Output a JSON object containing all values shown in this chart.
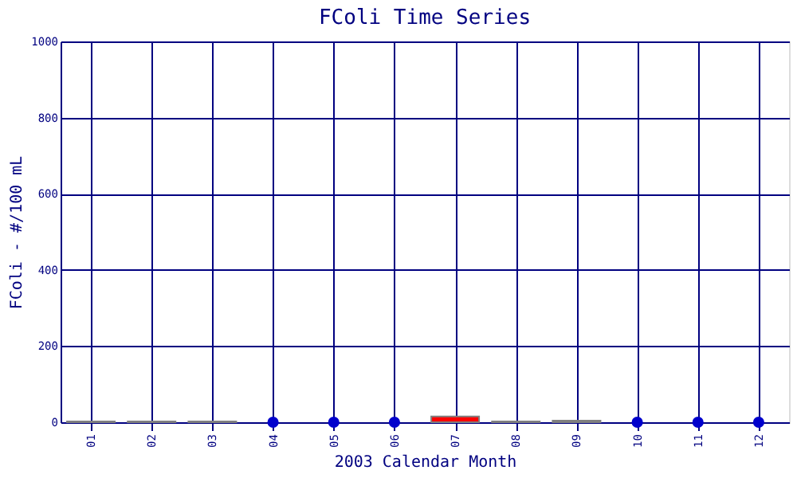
{
  "chart_data": {
    "type": "bar",
    "title": "FColi Time Series",
    "xlabel": "2003 Calendar Month",
    "ylabel": "FColi - #/100 mL",
    "categories": [
      "01",
      "02",
      "03",
      "04",
      "05",
      "06",
      "07",
      "08",
      "09",
      "10",
      "11",
      "12"
    ],
    "series": [
      {
        "type": "bar",
        "color": "#808080",
        "colors": [
          "#808080",
          "#808080",
          "#808080",
          null,
          null,
          null,
          "#ff0000",
          "#808080",
          "#808080",
          null,
          null,
          null
        ],
        "values": [
          2,
          2,
          2,
          null,
          null,
          null,
          15,
          2,
          4,
          null,
          null,
          null
        ]
      },
      {
        "type": "scatter",
        "color": "#0000cc",
        "x": [
          "04",
          "05",
          "06",
          "10",
          "11",
          "12"
        ],
        "values": [
          0,
          0,
          0,
          0,
          0,
          0
        ]
      }
    ],
    "ylim": [
      0,
      1000
    ],
    "yticks": [
      0,
      200,
      400,
      600,
      800,
      {
        "value": 1000,
        "label": "1000"
      }
    ],
    "grid": true,
    "marker": "circle"
  }
}
